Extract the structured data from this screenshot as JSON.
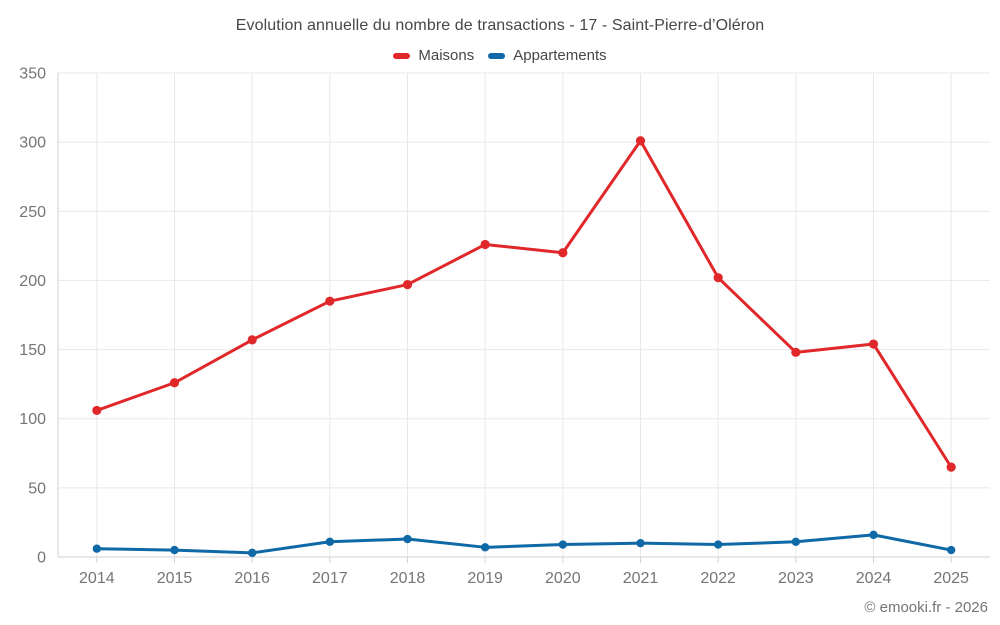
{
  "chart_data": {
    "type": "line",
    "title": "Evolution annuelle du nombre de transactions - 17 - Saint-Pierre-d’Oléron",
    "categories": [
      "2014",
      "2015",
      "2016",
      "2017",
      "2018",
      "2019",
      "2020",
      "2021",
      "2022",
      "2023",
      "2024",
      "2025"
    ],
    "series": [
      {
        "name": "Maisons",
        "color": "#e0282b",
        "values": [
          106,
          126,
          157,
          185,
          197,
          226,
          220,
          301,
          202,
          148,
          154,
          65
        ]
      },
      {
        "name": "Appartements",
        "color": "#0e69a6",
        "values": [
          6,
          5,
          3,
          11,
          13,
          7,
          9,
          10,
          9,
          11,
          16,
          5
        ]
      }
    ],
    "xlabel": "",
    "ylabel": "",
    "ylim": [
      0,
      350
    ],
    "yticks": [
      0,
      50,
      100,
      150,
      200,
      250,
      300,
      350
    ],
    "grid": true,
    "legend_position": "top"
  },
  "footer": {
    "copyright": "© emooki.fr - 2026"
  },
  "colors": {
    "grid": "#e8e8e8",
    "axis": "#d2d2d2",
    "axis_label": "#757575",
    "title_text": "#474747",
    "background": "#ffffff"
  }
}
